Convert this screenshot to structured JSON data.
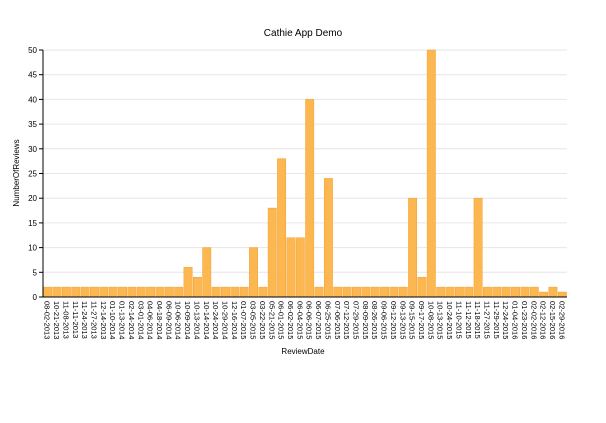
{
  "chart_data": {
    "type": "bar",
    "title": "Cathie App Demo",
    "x_label": "ReviewDate",
    "y_label": "NumberOfReviews",
    "categories": [
      "08-02-2013",
      "10-21-2013",
      "11-08-2013",
      "11-11-2013",
      "11-24-2013",
      "11-27-2013",
      "12-14-2013",
      "01-10-2014",
      "01-13-2014",
      "02-14-2014",
      "03-01-2014",
      "04-06-2014",
      "04-18-2014",
      "06-09-2014",
      "10-06-2014",
      "10-09-2014",
      "10-13-2014",
      "10-14-2014",
      "10-24-2014",
      "10-29-2014",
      "12-16-2014",
      "01-07-2015",
      "03-05-2015",
      "03-22-2015",
      "05-21-2015",
      "06-01-2015",
      "06-02-2015",
      "06-04-2015",
      "06-06-2015",
      "06-07-2015",
      "06-25-2015",
      "07-06-2015",
      "07-12-2015",
      "07-29-2015",
      "08-09-2015",
      "08-26-2015",
      "09-06-2015",
      "09-12-2015",
      "09-13-2015",
      "09-15-2015",
      "09-17-2015",
      "10-08-2015",
      "10-13-2015",
      "10-24-2015",
      "11-10-2015",
      "11-12-2015",
      "11-18-2015",
      "11-27-2015",
      "11-29-2015",
      "12-24-2015",
      "01-04-2016",
      "01-23-2016",
      "02-02-2016",
      "02-12-2016",
      "02-15-2016",
      "02-29-2016"
    ],
    "values": [
      2,
      2,
      2,
      2,
      2,
      2,
      2,
      2,
      2,
      2,
      2,
      2,
      2,
      2,
      2,
      6,
      4,
      10,
      2,
      2,
      2,
      2,
      10,
      2,
      18,
      28,
      12,
      12,
      40,
      2,
      24,
      2,
      2,
      2,
      2,
      2,
      2,
      2,
      2,
      20,
      4,
      50,
      2,
      2,
      2,
      2,
      20,
      2,
      2,
      2,
      2,
      2,
      2,
      1,
      2,
      1
    ],
    "color": "#fdb751",
    "ylim": [
      0,
      50
    ],
    "yticks": [
      0,
      5,
      10,
      15,
      20,
      25,
      30,
      35,
      40,
      45,
      50
    ],
    "grid": true
  }
}
